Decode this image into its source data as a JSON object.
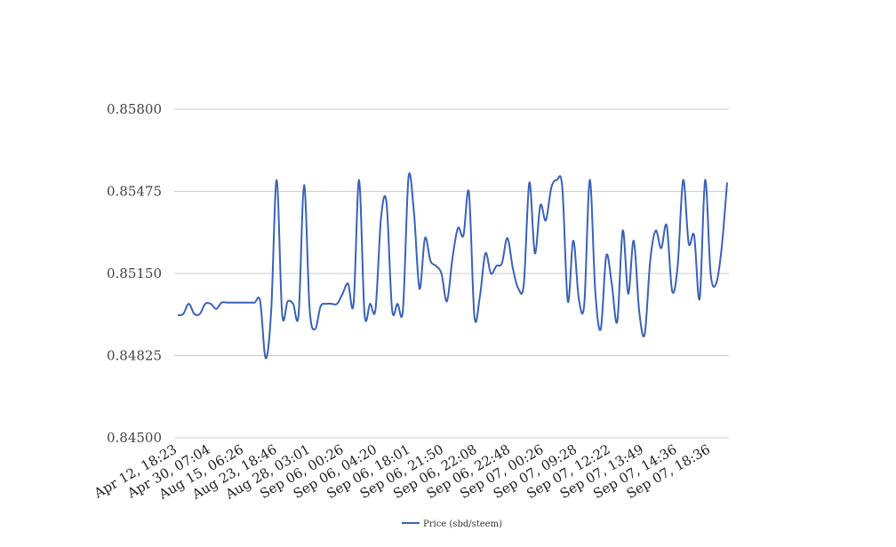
{
  "chart_data": {
    "type": "line",
    "title": "",
    "xlabel": "",
    "ylabel": "",
    "ylim": [
      0.845,
      0.858
    ],
    "y_ticks": [
      "0.85800",
      "0.85475",
      "0.85150",
      "0.84825",
      "0.84500"
    ],
    "x_tick_labels": [
      "Apr 12, 18:23",
      "Apr 30, 07:04",
      "Aug 15, 06:26",
      "Aug 23, 18:46",
      "Aug 28, 03:01",
      "Sep 06, 00:26",
      "Sep 06, 04:20",
      "Sep 06, 18:01",
      "Sep 06, 21:50",
      "Sep 06, 22:08",
      "Sep 06, 22:48",
      "Sep 07, 00:26",
      "Sep 07, 09:28",
      "Sep 07, 12:22",
      "Sep 07, 13:49",
      "Sep 07, 14:36",
      "Sep 07, 18:36"
    ],
    "grid": true,
    "legend": "bottom",
    "series": [
      {
        "name": "Price (sbd/steem)",
        "color": "#3a62b8",
        "values": [
          0.84985,
          0.8499,
          0.8503,
          0.8499,
          0.8499,
          0.8503,
          0.8503,
          0.8501,
          0.85035,
          0.85035,
          0.85035,
          0.85035,
          0.85035,
          0.85035,
          0.85035,
          0.8504,
          0.84815,
          0.85,
          0.8552,
          0.8499,
          0.8504,
          0.8503,
          0.8499,
          0.855,
          0.8501,
          0.8493,
          0.8502,
          0.8503,
          0.8503,
          0.8503,
          0.8507,
          0.8511,
          0.8503,
          0.8552,
          0.8499,
          0.8503,
          0.8501,
          0.8537,
          0.8543,
          0.8501,
          0.8503,
          0.8501,
          0.8553,
          0.8539,
          0.8509,
          0.8529,
          0.852,
          0.8518,
          0.8515,
          0.8504,
          0.8521,
          0.8533,
          0.853,
          0.8547,
          0.8498,
          0.8506,
          0.8523,
          0.8515,
          0.8518,
          0.8519,
          0.8529,
          0.8517,
          0.8509,
          0.8511,
          0.8551,
          0.8523,
          0.8542,
          0.8536,
          0.8549,
          0.8552,
          0.8549,
          0.8504,
          0.8528,
          0.8505,
          0.8503,
          0.8552,
          0.8508,
          0.8493,
          0.8522,
          0.8511,
          0.8496,
          0.8532,
          0.8507,
          0.8528,
          0.85,
          0.8491,
          0.852,
          0.8532,
          0.8525,
          0.8534,
          0.8508,
          0.8518,
          0.8552,
          0.8527,
          0.853,
          0.8505,
          0.8552,
          0.8515,
          0.8511,
          0.8525,
          0.8551
        ]
      }
    ]
  }
}
